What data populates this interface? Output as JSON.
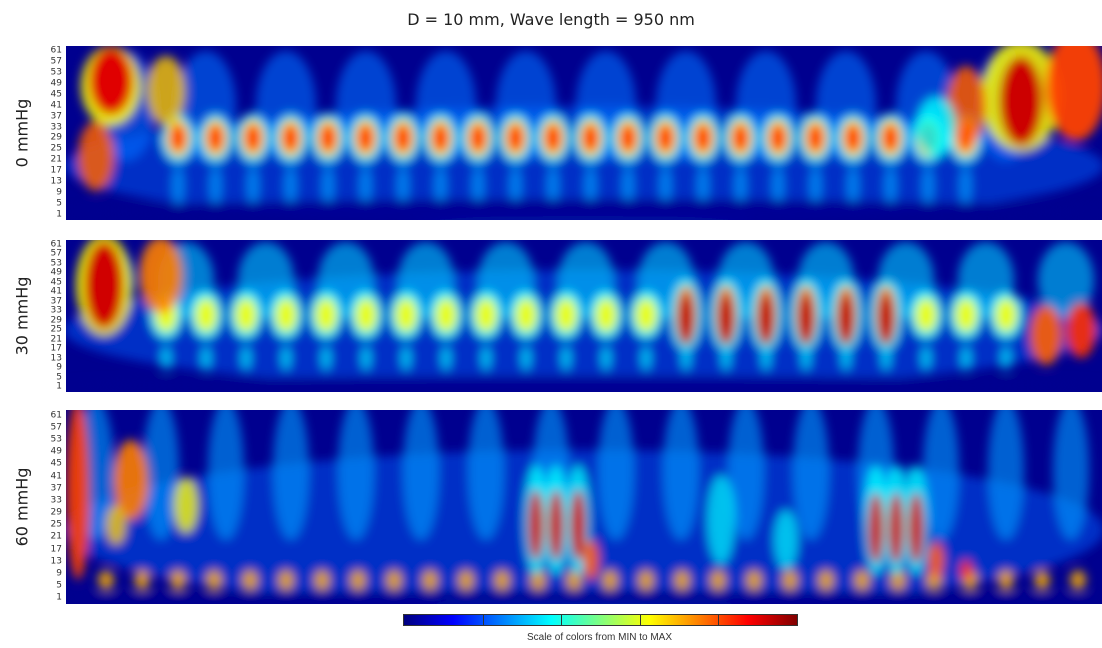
{
  "title": "D = 10 mm, Wave length = 950 nm",
  "panels": [
    {
      "label": "0 mmHg",
      "ticks": [
        "1",
        "5",
        "9",
        "13",
        "17",
        "21",
        "25",
        "29",
        "33",
        "37",
        "41",
        "45",
        "49",
        "53",
        "57",
        "61"
      ]
    },
    {
      "label": "30 mmHg",
      "ticks": [
        "1",
        "5",
        "9",
        "13",
        "17",
        "21",
        "25",
        "29",
        "33",
        "37",
        "41",
        "45",
        "49",
        "53",
        "57",
        "61"
      ]
    },
    {
      "label": "60 mmHg",
      "ticks": [
        "1",
        "5",
        "9",
        "13",
        "17",
        "21",
        "25",
        "29",
        "33",
        "37",
        "41",
        "45",
        "49",
        "53",
        "57",
        "61"
      ]
    }
  ],
  "colorbar": {
    "label": "Scale of colors from MIN to MAX",
    "colors": [
      "#00007f",
      "#0000ff",
      "#0080ff",
      "#00ffff",
      "#80ff80",
      "#ffff00",
      "#ff8000",
      "#ff0000",
      "#800000"
    ]
  },
  "chart_data": {
    "type": "heatmap",
    "title": "D = 10 mm, Wave length = 950 nm",
    "series": [
      {
        "name": "0 mmHg",
        "ylim": [
          1,
          61
        ],
        "yticks": [
          1,
          5,
          9,
          13,
          17,
          21,
          25,
          29,
          33,
          37,
          41,
          45,
          49,
          53,
          57,
          61
        ]
      },
      {
        "name": "30 mmHg",
        "ylim": [
          1,
          61
        ],
        "yticks": [
          1,
          5,
          9,
          13,
          17,
          21,
          25,
          29,
          33,
          37,
          41,
          45,
          49,
          53,
          57,
          61
        ]
      },
      {
        "name": "60 mmHg",
        "ylim": [
          1,
          61
        ],
        "yticks": [
          1,
          5,
          9,
          13,
          17,
          21,
          25,
          29,
          33,
          37,
          41,
          45,
          49,
          53,
          57,
          61
        ]
      }
    ],
    "color_scale": "MIN to MAX",
    "grid": false
  }
}
